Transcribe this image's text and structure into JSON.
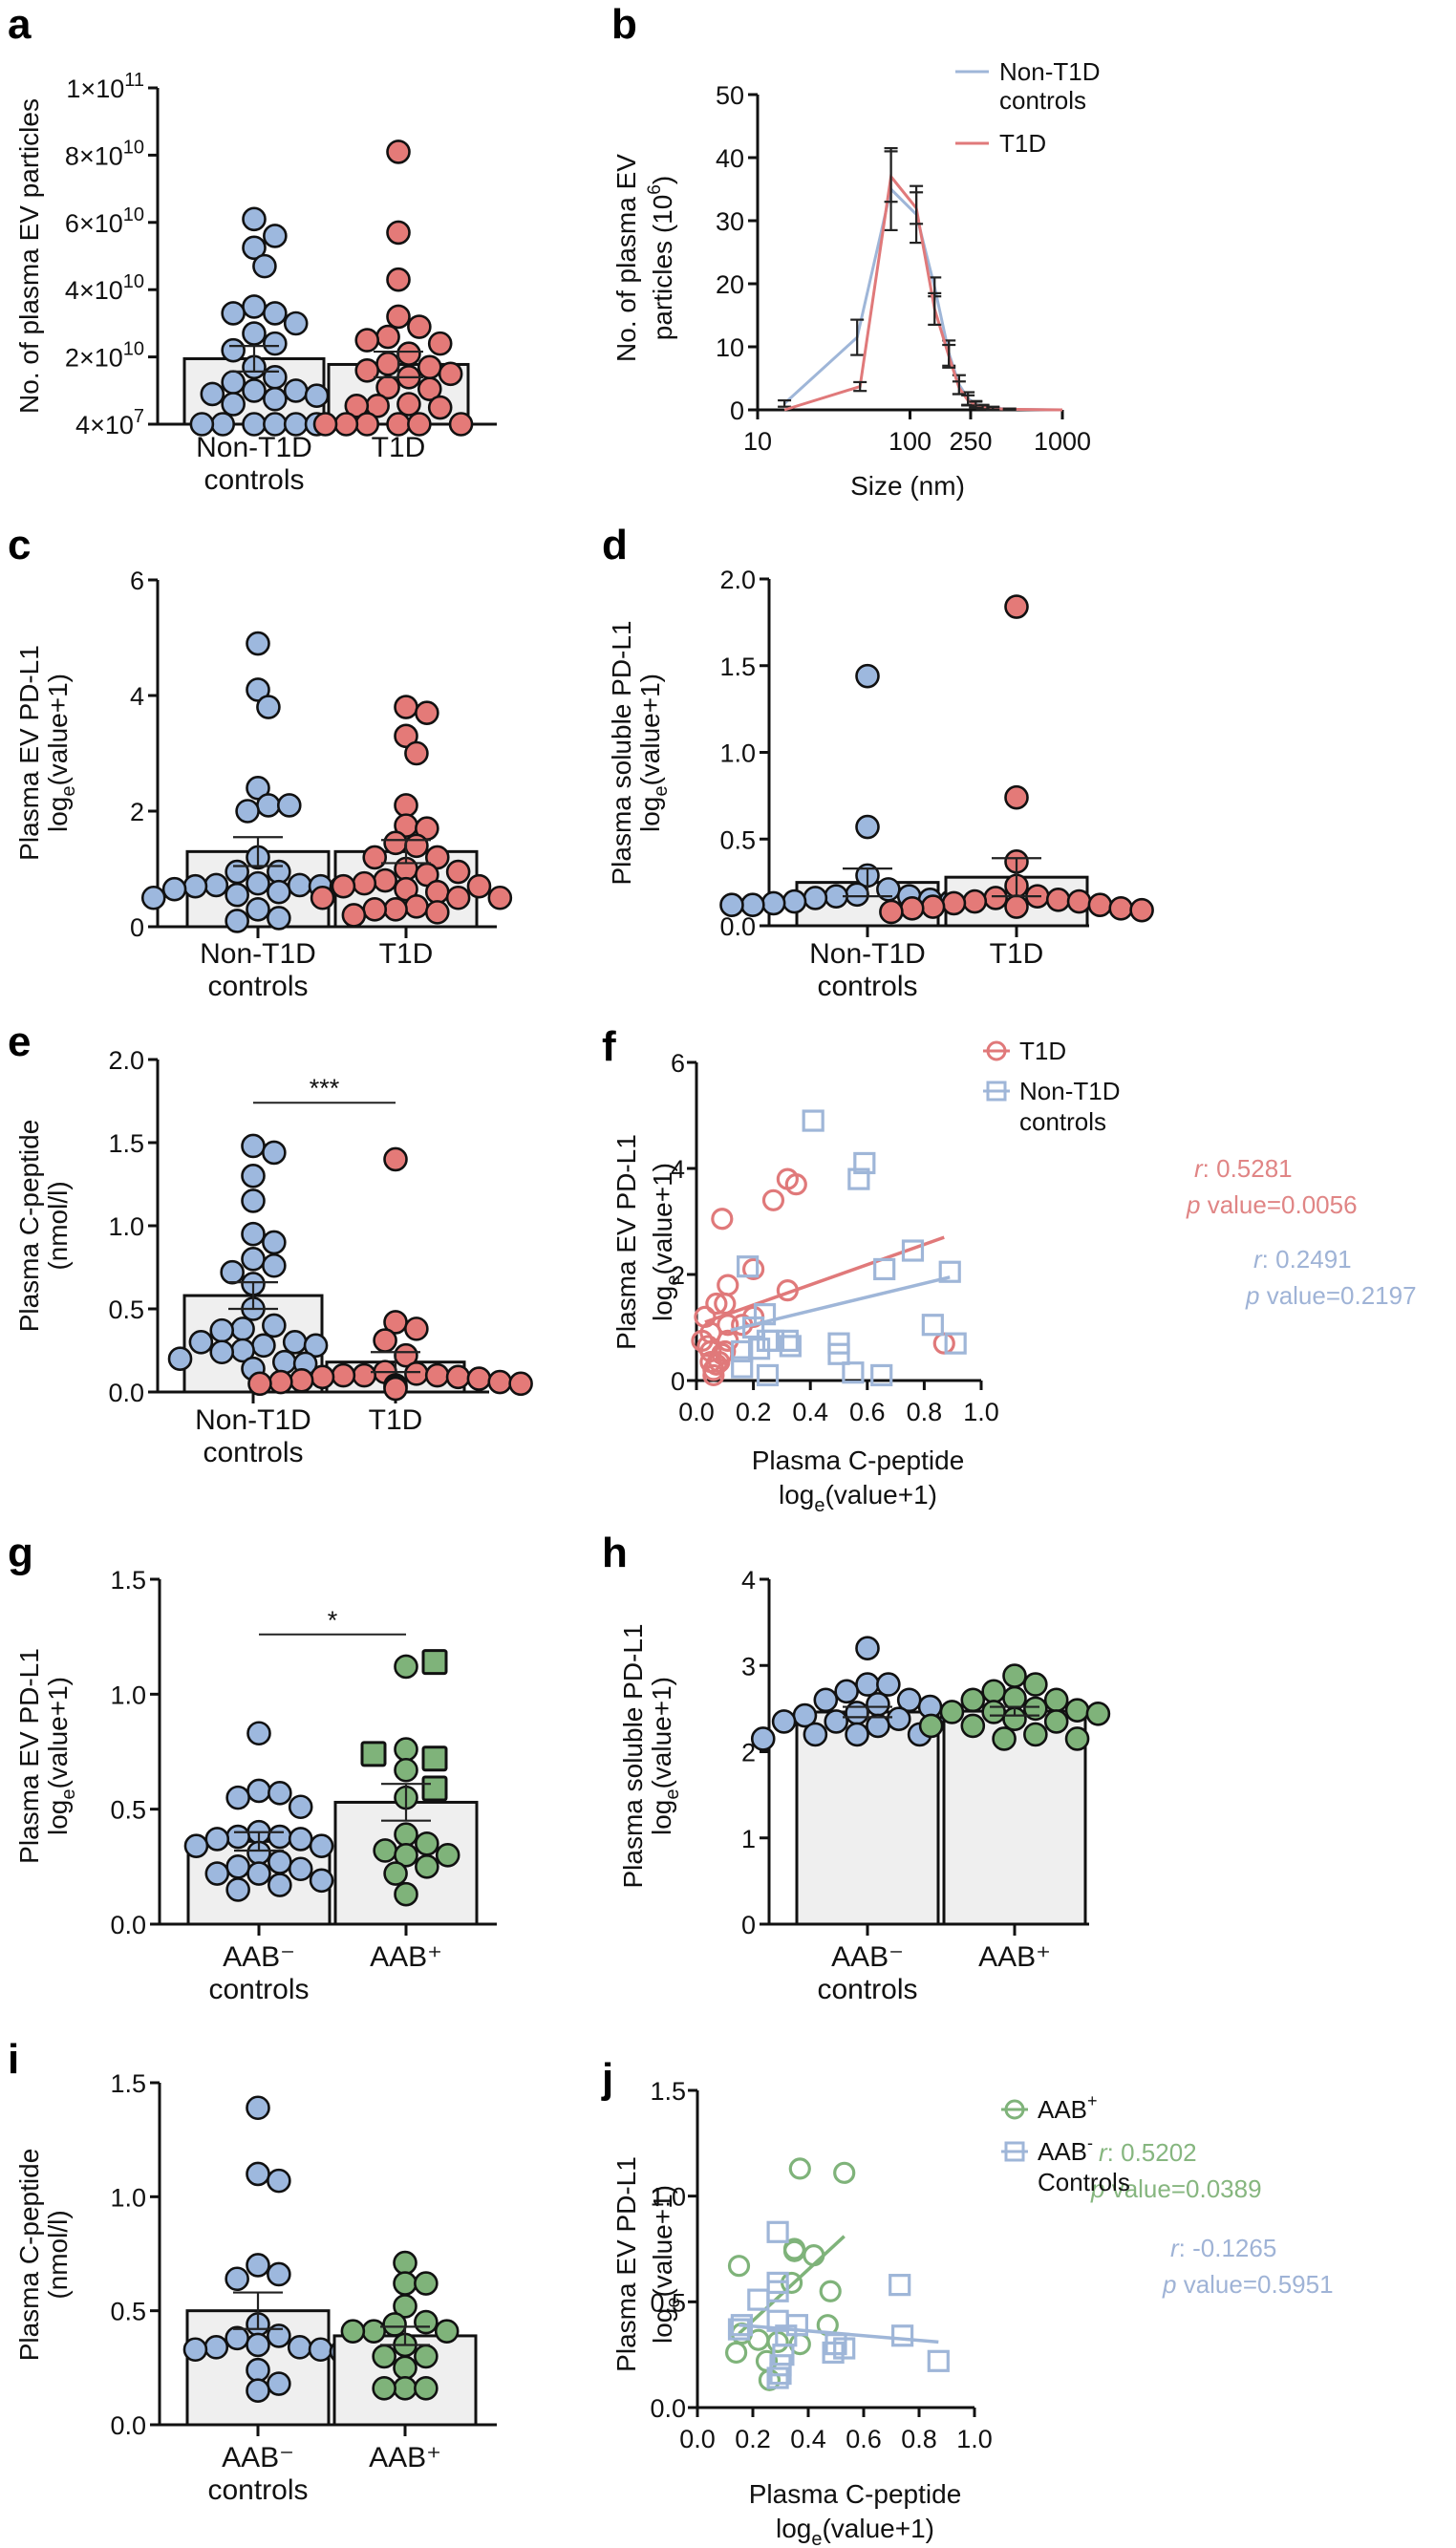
{
  "colors": {
    "control_blue": "#9db8de",
    "t1d_red": "#e47a78",
    "aab_green": "#7fb37a",
    "bar_fill": "#efefef",
    "line_blue": "#9fb6d8",
    "line_red": "#e0797a",
    "line_green": "#7fb37a",
    "stat_red": "#e08585",
    "stat_blue": "#9fb3d6",
    "stat_green": "#86b67f"
  },
  "chart_data": [
    {
      "panel": "a",
      "type": "bar",
      "ylabel": "No. of plasma EV particles",
      "yticks": [
        "4×10^7",
        "2×10^10",
        "4×10^10",
        "6×10^10",
        "8×10^10",
        "1×10^11"
      ],
      "ylim": [
        40000000,
        100000000000
      ],
      "categories": [
        "Non-T1D controls",
        "T1D"
      ],
      "category_lines": [
        [
          "Non-T1D",
          "controls"
        ],
        [
          "T1D"
        ]
      ],
      "means": [
        19500000000,
        17800000000
      ],
      "sem": [
        3800000000,
        3800000000
      ],
      "points": [
        [
          61000000000.0,
          56000000000.0,
          52500000000.0,
          47000000000.0,
          35000000000.0,
          33000000000.0,
          33000000000.0,
          30000000000.0,
          27000000000.0,
          24000000000.0,
          22000000000.0,
          17000000000.0,
          14000000000.0,
          12500000000.0,
          10000000000.0,
          10000000000.0,
          9000000000.0,
          8500000000.0,
          7500000000.0,
          6000000000.0,
          40000000.0,
          40000000.0,
          40000000.0,
          40000000.0,
          40000000.0,
          40000000.0
        ],
        [
          81000000000.0,
          57000000000.0,
          43000000000.0,
          32000000000.0,
          29000000000.0,
          26000000000.0,
          25000000000.0,
          24000000000.0,
          21000000000.0,
          18000000000.0,
          17000000000.0,
          16000000000.0,
          15000000000.0,
          14000000000.0,
          11000000000.0,
          10500000000.0,
          6000000000.0,
          5500000000.0,
          5500000000.0,
          5000000000.0,
          40000000.0,
          40000000.0,
          40000000.0,
          40000000.0,
          40000000.0,
          40000000.0
        ]
      ],
      "series_colors": [
        "control_blue",
        "t1d_red"
      ]
    },
    {
      "panel": "b",
      "type": "line",
      "xlabel": "Size (nm)",
      "ylabel": "No. of plasma EV particles (10^6)",
      "xscale": "log",
      "xticks": [
        "10",
        "100",
        "250",
        "1000"
      ],
      "xtick_values": [
        10,
        100,
        250,
        1000
      ],
      "yticks": [
        "0",
        "10",
        "20",
        "30",
        "40",
        "50"
      ],
      "xlim": [
        10,
        1000
      ],
      "ylim": [
        0,
        50
      ],
      "legend": [
        "Non-T1D controls",
        "T1D"
      ],
      "legend_position": "top-right",
      "series": [
        {
          "name": "Non-T1D controls",
          "x": [
            15,
            45,
            75,
            110,
            145,
            180,
            210,
            240,
            270,
            300,
            350,
            450,
            600,
            800,
            1000
          ],
          "y": [
            1,
            11.5,
            35,
            31,
            19.5,
            9,
            4,
            1.8,
            0.9,
            0.5,
            0.3,
            0.1,
            0.05,
            0.02,
            0
          ],
          "err": [
            0.5,
            2.8,
            6.5,
            4.5,
            1.5,
            2,
            1.5,
            1,
            0.5,
            0.3,
            0.2,
            0.1,
            0,
            0,
            0
          ]
        },
        {
          "name": "T1D",
          "x": [
            15,
            47,
            75,
            110,
            145,
            180,
            210,
            240,
            270,
            300,
            350,
            450,
            600,
            800,
            1000
          ],
          "y": [
            0,
            3.7,
            37,
            32,
            16,
            8.5,
            3.5,
            1.5,
            0.8,
            0.4,
            0.2,
            0.1,
            0.05,
            0.02,
            0
          ],
          "err": [
            0,
            0.7,
            4,
            2.5,
            2.5,
            1.8,
            1,
            0.8,
            0.5,
            0.3,
            0.2,
            0.1,
            0,
            0,
            0
          ]
        }
      ]
    },
    {
      "panel": "c",
      "type": "bar",
      "ylabel": "Plasma EV PD-L1",
      "ylabel2": "loge(value+1)",
      "yticks": [
        "0",
        "2",
        "4",
        "6"
      ],
      "ylim": [
        0,
        6
      ],
      "categories": [
        "Non-T1D controls",
        "T1D"
      ],
      "category_lines": [
        [
          "Non-T1D",
          "controls"
        ],
        [
          "T1D"
        ]
      ],
      "means": [
        1.3,
        1.3
      ],
      "sem": [
        0.25,
        0.2
      ],
      "points": [
        [
          4.9,
          4.1,
          3.8,
          2.4,
          2.1,
          2.0,
          2.1,
          1.2,
          0.95,
          0.95,
          0.75,
          0.72,
          0.72,
          0.7,
          0.7,
          0.68,
          0.65,
          0.6,
          0.55,
          0.55,
          0.5,
          0.3,
          0.15,
          0.1
        ],
        [
          3.8,
          3.7,
          3.3,
          3.0,
          2.1,
          1.75,
          1.7,
          1.45,
          1.4,
          1.2,
          1.2,
          1.0,
          0.95,
          0.9,
          0.8,
          0.75,
          0.7,
          0.7,
          0.65,
          0.6,
          0.5,
          0.5,
          0.5,
          0.35,
          0.3,
          0.3,
          0.25,
          0.2
        ]
      ],
      "series_colors": [
        "control_blue",
        "t1d_red"
      ]
    },
    {
      "panel": "d",
      "type": "bar",
      "ylabel": "Plasma soluble PD-L1",
      "ylabel2": "loge(value+1)",
      "yticks": [
        "0.0",
        "0.5",
        "1.0",
        "1.5",
        "2.0"
      ],
      "ylim": [
        0,
        2
      ],
      "categories": [
        "Non-T1D controls",
        "T1D"
      ],
      "category_lines": [
        [
          "Non-T1D",
          "controls"
        ],
        [
          "T1D"
        ]
      ],
      "means": [
        0.25,
        0.28
      ],
      "sem": [
        0.08,
        0.11
      ],
      "points": [
        [
          1.44,
          0.57,
          0.29,
          0.21,
          0.18,
          0.17,
          0.17,
          0.16,
          0.15,
          0.14,
          0.14,
          0.13,
          0.13,
          0.12,
          0.12,
          0.12
        ],
        [
          1.84,
          0.74,
          0.37,
          0.23,
          0.17,
          0.16,
          0.15,
          0.14,
          0.14,
          0.13,
          0.12,
          0.11,
          0.11,
          0.1,
          0.1,
          0.09,
          0.08
        ]
      ],
      "series_colors": [
        "control_blue",
        "t1d_red"
      ]
    },
    {
      "panel": "e",
      "type": "bar",
      "ylabel": "Plasma C-peptide",
      "ylabel2": "(nmol/l)",
      "yticks": [
        "0.0",
        "0.5",
        "1.0",
        "1.5",
        "2.0"
      ],
      "ylim": [
        0,
        2
      ],
      "categories": [
        "Non-T1D controls",
        "T1D"
      ],
      "category_lines": [
        [
          "Non-T1D",
          "controls"
        ],
        [
          "T1D"
        ]
      ],
      "means": [
        0.58,
        0.18
      ],
      "sem": [
        0.08,
        0.06
      ],
      "significance": "***",
      "points": [
        [
          1.48,
          1.44,
          1.3,
          1.15,
          0.95,
          0.9,
          0.8,
          0.76,
          0.72,
          0.65,
          0.5,
          0.4,
          0.38,
          0.37,
          0.3,
          0.3,
          0.28,
          0.28,
          0.25,
          0.24,
          0.2,
          0.18,
          0.17,
          0.14
        ],
        [
          1.4,
          0.42,
          0.38,
          0.31,
          0.22,
          0.12,
          0.11,
          0.1,
          0.1,
          0.1,
          0.09,
          0.09,
          0.08,
          0.07,
          0.06,
          0.06,
          0.05,
          0.05,
          0.04,
          0.03,
          0.02
        ]
      ],
      "series_colors": [
        "control_blue",
        "t1d_red"
      ]
    },
    {
      "panel": "f",
      "type": "scatter",
      "xlabel": "Plasma C-peptide",
      "xlabel2": "loge(value+1)",
      "ylabel": "Plasma EV PD-L1",
      "ylabel2": "loge(value+1)",
      "xticks": [
        "0.0",
        "0.2",
        "0.4",
        "0.6",
        "0.8",
        "1.0"
      ],
      "yticks": [
        "0",
        "2",
        "4",
        "6"
      ],
      "xlim": [
        0,
        1
      ],
      "ylim": [
        0,
        6
      ],
      "legend": [
        "T1D",
        "Non-T1D controls"
      ],
      "legend_position": "top-right",
      "series": [
        {
          "name": "T1D",
          "marker": "circle",
          "color": "line_red",
          "r": "0.5281",
          "p": "0.0056",
          "fit": [
            [
              0.03,
              1.1
            ],
            [
              0.87,
              2.7
            ]
          ],
          "x": [
            0.09,
            0.27,
            0.32,
            0.35,
            0.2,
            0.11,
            0.32,
            0.07,
            0.1,
            0.03,
            0.11,
            0.05,
            0.16,
            0.2,
            0.02,
            0.04,
            0.11,
            0.05,
            0.1,
            0.09,
            0.05,
            0.08,
            0.06,
            0.06,
            0.07,
            0.87
          ],
          "y": [
            3.05,
            3.4,
            3.8,
            3.7,
            2.1,
            1.8,
            1.7,
            1.45,
            1.45,
            1.2,
            1.05,
            0.9,
            1.05,
            1.2,
            0.75,
            0.65,
            0.75,
            0.55,
            0.55,
            0.5,
            0.35,
            0.35,
            0.2,
            0.1,
            0.3,
            0.7
          ]
        },
        {
          "name": "Non-T1D controls",
          "marker": "square",
          "color": "line_blue",
          "r": "0.2491",
          "p": "0.2197",
          "fit": [
            [
              0.12,
              0.95
            ],
            [
              0.89,
              1.95
            ]
          ],
          "x": [
            0.41,
            0.57,
            0.59,
            0.18,
            0.76,
            0.66,
            0.89,
            0.83,
            0.91,
            0.24,
            0.2,
            0.25,
            0.27,
            0.32,
            0.33,
            0.22,
            0.16,
            0.16,
            0.5,
            0.5,
            0.55,
            0.65,
            0.25
          ],
          "y": [
            4.9,
            3.8,
            4.1,
            2.15,
            2.45,
            2.1,
            2.05,
            1.05,
            0.7,
            1.25,
            1.0,
            0.75,
            0.75,
            0.75,
            0.65,
            0.6,
            0.55,
            0.25,
            0.7,
            0.5,
            0.15,
            0.1,
            0.1
          ]
        }
      ]
    },
    {
      "panel": "g",
      "type": "bar",
      "ylabel": "Plasma EV PD-L1",
      "ylabel2": "loge(value+1)",
      "yticks": [
        "0.0",
        "0.5",
        "1.0",
        "1.5"
      ],
      "ylim": [
        0,
        1.5
      ],
      "categories": [
        "AAB- controls",
        "AAB+"
      ],
      "category_lines": [
        [
          "AAB⁻",
          "controls"
        ],
        [
          "AAB⁺"
        ]
      ],
      "means": [
        0.36,
        0.53
      ],
      "sem": [
        0.04,
        0.08
      ],
      "significance": "*",
      "points": [
        [
          0.83,
          0.58,
          0.57,
          0.55,
          0.51,
          0.4,
          0.38,
          0.38,
          0.37,
          0.37,
          0.34,
          0.34,
          0.31,
          0.27,
          0.25,
          0.24,
          0.22,
          0.22,
          0.19,
          0.17,
          0.15
        ],
        [
          1.12,
          0.76,
          0.67,
          0.55,
          0.39,
          0.35,
          0.32,
          0.3,
          0.3,
          0.25,
          0.22,
          0.13
        ]
      ],
      "square_points": [
        1.14,
        0.74,
        0.72,
        0.59
      ],
      "series_colors": [
        "control_blue",
        "aab_green"
      ]
    },
    {
      "panel": "h",
      "type": "bar",
      "ylabel": "Plasma soluble PD-L1",
      "ylabel2": "loge(value+1)",
      "yticks": [
        "0",
        "1",
        "2",
        "3",
        "4"
      ],
      "ylim": [
        0,
        4
      ],
      "categories": [
        "AAB- controls",
        "AAB+"
      ],
      "category_lines": [
        [
          "AAB⁻",
          "controls"
        ],
        [
          "AAB⁺"
        ]
      ],
      "means": [
        2.46,
        2.47
      ],
      "sem": [
        0.06,
        0.05
      ],
      "points": [
        [
          3.2,
          2.78,
          2.78,
          2.7,
          2.6,
          2.6,
          2.55,
          2.52,
          2.45,
          2.42,
          2.38,
          2.35,
          2.35,
          2.35,
          2.3,
          2.2,
          2.2,
          2.2,
          2.15,
          2.15
        ],
        [
          2.88,
          2.78,
          2.7,
          2.62,
          2.6,
          2.6,
          2.5,
          2.48,
          2.46,
          2.46,
          2.44,
          2.38,
          2.35,
          2.3,
          2.3,
          2.2,
          2.15,
          2.15
        ]
      ],
      "series_colors": [
        "control_blue",
        "aab_green"
      ]
    },
    {
      "panel": "i",
      "type": "bar",
      "ylabel": "Plasma C-peptide",
      "ylabel2": "(nmol/l)",
      "yticks": [
        "0.0",
        "0.5",
        "1.0",
        "1.5"
      ],
      "ylim": [
        0,
        1.5
      ],
      "categories": [
        "AAB- controls",
        "AAB+"
      ],
      "category_lines": [
        [
          "AAB⁻",
          "controls"
        ],
        [
          "AAB⁺"
        ]
      ],
      "means": [
        0.5,
        0.39
      ],
      "sem": [
        0.08,
        0.04
      ],
      "points": [
        [
          1.39,
          1.1,
          1.07,
          0.7,
          0.66,
          0.64,
          0.44,
          0.39,
          0.38,
          0.35,
          0.34,
          0.34,
          0.33,
          0.33,
          0.32,
          0.24,
          0.18,
          0.15
        ],
        [
          0.71,
          0.62,
          0.62,
          0.52,
          0.45,
          0.44,
          0.41,
          0.41,
          0.41,
          0.35,
          0.3,
          0.3,
          0.25,
          0.16,
          0.16,
          0.16
        ]
      ],
      "series_colors": [
        "control_blue",
        "aab_green"
      ]
    },
    {
      "panel": "j",
      "type": "scatter",
      "xlabel": "Plasma C-peptide",
      "xlabel2": "loge(value+1)",
      "ylabel": "Plasma EV PD-L1",
      "ylabel2": "loge(value+1)",
      "xticks": [
        "0.0",
        "0.2",
        "0.4",
        "0.6",
        "0.8",
        "1.0"
      ],
      "yticks": [
        "0.0",
        "0.5",
        "1.0",
        "1.5"
      ],
      "xlim": [
        0,
        1
      ],
      "ylim": [
        0,
        1.5
      ],
      "legend": [
        "AAB+",
        "AAB- Controls"
      ],
      "legend_position": "top-right",
      "series": [
        {
          "name": "AAB+",
          "marker": "circle",
          "color": "line_green",
          "r": "0.5202",
          "p": "0.0389",
          "fit": [
            [
              0.15,
              0.35
            ],
            [
              0.53,
              0.81
            ]
          ],
          "x": [
            0.37,
            0.53,
            0.15,
            0.35,
            0.35,
            0.42,
            0.34,
            0.48,
            0.47,
            0.22,
            0.29,
            0.37,
            0.14,
            0.25,
            0.26,
            0.16
          ],
          "y": [
            1.13,
            1.11,
            0.67,
            0.75,
            0.74,
            0.72,
            0.59,
            0.55,
            0.39,
            0.32,
            0.31,
            0.3,
            0.26,
            0.22,
            0.13,
            0.35
          ]
        },
        {
          "name": "AAB- Controls",
          "marker": "square",
          "color": "line_blue",
          "r": "-0.1265",
          "p": "0.5951",
          "fit": [
            [
              0.15,
              0.39
            ],
            [
              0.87,
              0.31
            ]
          ],
          "x": [
            0.29,
            0.29,
            0.29,
            0.22,
            0.73,
            0.16,
            0.15,
            0.29,
            0.36,
            0.74,
            0.32,
            0.31,
            0.5,
            0.53,
            0.49,
            0.87,
            0.3,
            0.3,
            0.29
          ],
          "y": [
            0.83,
            0.59,
            0.55,
            0.51,
            0.58,
            0.39,
            0.37,
            0.41,
            0.39,
            0.34,
            0.34,
            0.25,
            0.3,
            0.28,
            0.26,
            0.22,
            0.2,
            0.16,
            0.14
          ]
        }
      ]
    }
  ]
}
